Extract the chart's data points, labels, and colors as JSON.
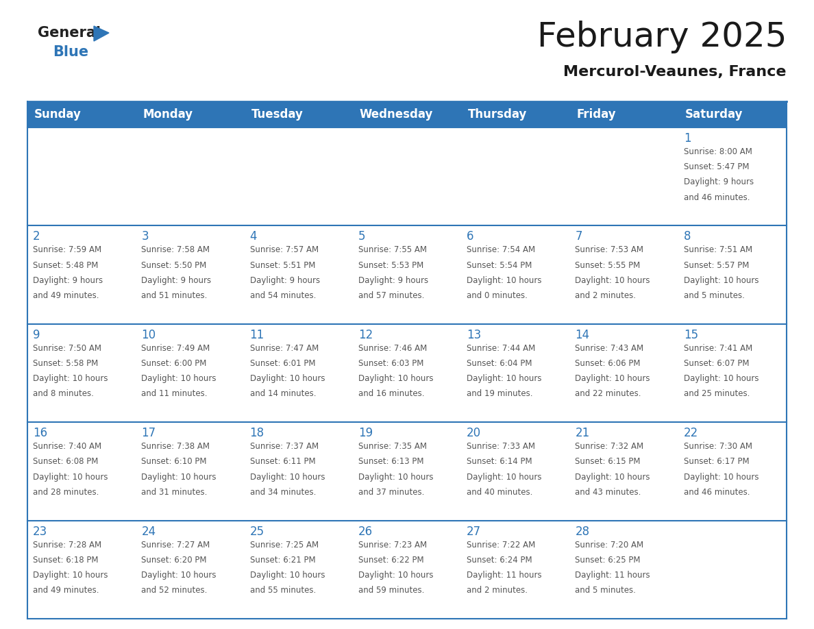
{
  "title": "February 2025",
  "subtitle": "Mercurol-Veaunes, France",
  "header_bg_color": "#2E75B6",
  "header_text_color": "#FFFFFF",
  "cell_bg_color": "#FFFFFF",
  "day_number_color": "#2E75B6",
  "text_color": "#555555",
  "border_color": "#2E75B6",
  "line_color": "#AAAAAA",
  "weekdays": [
    "Sunday",
    "Monday",
    "Tuesday",
    "Wednesday",
    "Thursday",
    "Friday",
    "Saturday"
  ],
  "days": [
    {
      "day": 1,
      "col": 6,
      "row": 0,
      "sunrise": "8:00 AM",
      "sunset": "5:47 PM",
      "daylight": "9 hours and 46 minutes"
    },
    {
      "day": 2,
      "col": 0,
      "row": 1,
      "sunrise": "7:59 AM",
      "sunset": "5:48 PM",
      "daylight": "9 hours and 49 minutes"
    },
    {
      "day": 3,
      "col": 1,
      "row": 1,
      "sunrise": "7:58 AM",
      "sunset": "5:50 PM",
      "daylight": "9 hours and 51 minutes"
    },
    {
      "day": 4,
      "col": 2,
      "row": 1,
      "sunrise": "7:57 AM",
      "sunset": "5:51 PM",
      "daylight": "9 hours and 54 minutes"
    },
    {
      "day": 5,
      "col": 3,
      "row": 1,
      "sunrise": "7:55 AM",
      "sunset": "5:53 PM",
      "daylight": "9 hours and 57 minutes"
    },
    {
      "day": 6,
      "col": 4,
      "row": 1,
      "sunrise": "7:54 AM",
      "sunset": "5:54 PM",
      "daylight": "10 hours and 0 minutes"
    },
    {
      "day": 7,
      "col": 5,
      "row": 1,
      "sunrise": "7:53 AM",
      "sunset": "5:55 PM",
      "daylight": "10 hours and 2 minutes"
    },
    {
      "day": 8,
      "col": 6,
      "row": 1,
      "sunrise": "7:51 AM",
      "sunset": "5:57 PM",
      "daylight": "10 hours and 5 minutes"
    },
    {
      "day": 9,
      "col": 0,
      "row": 2,
      "sunrise": "7:50 AM",
      "sunset": "5:58 PM",
      "daylight": "10 hours and 8 minutes"
    },
    {
      "day": 10,
      "col": 1,
      "row": 2,
      "sunrise": "7:49 AM",
      "sunset": "6:00 PM",
      "daylight": "10 hours and 11 minutes"
    },
    {
      "day": 11,
      "col": 2,
      "row": 2,
      "sunrise": "7:47 AM",
      "sunset": "6:01 PM",
      "daylight": "10 hours and 14 minutes"
    },
    {
      "day": 12,
      "col": 3,
      "row": 2,
      "sunrise": "7:46 AM",
      "sunset": "6:03 PM",
      "daylight": "10 hours and 16 minutes"
    },
    {
      "day": 13,
      "col": 4,
      "row": 2,
      "sunrise": "7:44 AM",
      "sunset": "6:04 PM",
      "daylight": "10 hours and 19 minutes"
    },
    {
      "day": 14,
      "col": 5,
      "row": 2,
      "sunrise": "7:43 AM",
      "sunset": "6:06 PM",
      "daylight": "10 hours and 22 minutes"
    },
    {
      "day": 15,
      "col": 6,
      "row": 2,
      "sunrise": "7:41 AM",
      "sunset": "6:07 PM",
      "daylight": "10 hours and 25 minutes"
    },
    {
      "day": 16,
      "col": 0,
      "row": 3,
      "sunrise": "7:40 AM",
      "sunset": "6:08 PM",
      "daylight": "10 hours and 28 minutes"
    },
    {
      "day": 17,
      "col": 1,
      "row": 3,
      "sunrise": "7:38 AM",
      "sunset": "6:10 PM",
      "daylight": "10 hours and 31 minutes"
    },
    {
      "day": 18,
      "col": 2,
      "row": 3,
      "sunrise": "7:37 AM",
      "sunset": "6:11 PM",
      "daylight": "10 hours and 34 minutes"
    },
    {
      "day": 19,
      "col": 3,
      "row": 3,
      "sunrise": "7:35 AM",
      "sunset": "6:13 PM",
      "daylight": "10 hours and 37 minutes"
    },
    {
      "day": 20,
      "col": 4,
      "row": 3,
      "sunrise": "7:33 AM",
      "sunset": "6:14 PM",
      "daylight": "10 hours and 40 minutes"
    },
    {
      "day": 21,
      "col": 5,
      "row": 3,
      "sunrise": "7:32 AM",
      "sunset": "6:15 PM",
      "daylight": "10 hours and 43 minutes"
    },
    {
      "day": 22,
      "col": 6,
      "row": 3,
      "sunrise": "7:30 AM",
      "sunset": "6:17 PM",
      "daylight": "10 hours and 46 minutes"
    },
    {
      "day": 23,
      "col": 0,
      "row": 4,
      "sunrise": "7:28 AM",
      "sunset": "6:18 PM",
      "daylight": "10 hours and 49 minutes"
    },
    {
      "day": 24,
      "col": 1,
      "row": 4,
      "sunrise": "7:27 AM",
      "sunset": "6:20 PM",
      "daylight": "10 hours and 52 minutes"
    },
    {
      "day": 25,
      "col": 2,
      "row": 4,
      "sunrise": "7:25 AM",
      "sunset": "6:21 PM",
      "daylight": "10 hours and 55 minutes"
    },
    {
      "day": 26,
      "col": 3,
      "row": 4,
      "sunrise": "7:23 AM",
      "sunset": "6:22 PM",
      "daylight": "10 hours and 59 minutes"
    },
    {
      "day": 27,
      "col": 4,
      "row": 4,
      "sunrise": "7:22 AM",
      "sunset": "6:24 PM",
      "daylight": "11 hours and 2 minutes"
    },
    {
      "day": 28,
      "col": 5,
      "row": 4,
      "sunrise": "7:20 AM",
      "sunset": "6:25 PM",
      "daylight": "11 hours and 5 minutes"
    }
  ],
  "logo_general_color": "#222222",
  "logo_blue_color": "#2E75B6",
  "title_fontsize": 36,
  "subtitle_fontsize": 16,
  "header_fontsize": 12,
  "day_num_fontsize": 12,
  "cell_text_fontsize": 8.5
}
